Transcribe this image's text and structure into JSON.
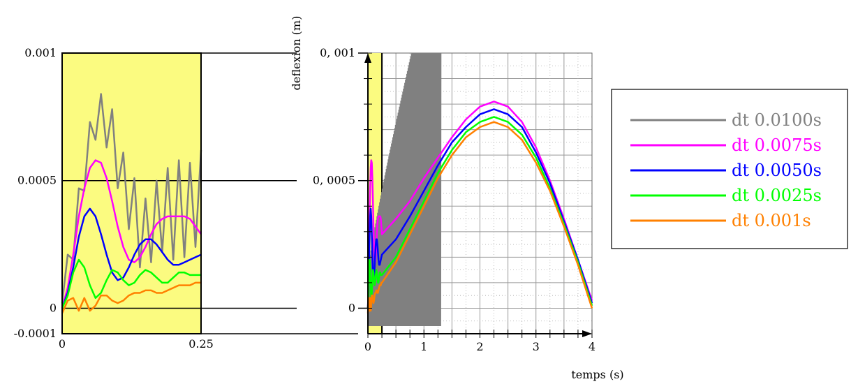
{
  "chart_data": [
    {
      "type": "line",
      "title": "",
      "xlabel": "",
      "ylabel": "",
      "xlim": [
        0,
        0.25
      ],
      "ylim": [
        -0.0001,
        0.001
      ],
      "x_tick_labels": [
        "0",
        "0.25"
      ],
      "y_tick_labels": [
        "0.001",
        "0.0005",
        "0",
        "-0.0001"
      ],
      "y_tick_values": [
        0.001,
        0.0005,
        0,
        -0.0001
      ],
      "background_color": "#fbfb80",
      "series": [
        {
          "name": "dt 0.0100s",
          "color": "#808080",
          "x": [
            0,
            0.01,
            0.02,
            0.03,
            0.04,
            0.05,
            0.06,
            0.07,
            0.08,
            0.09,
            0.1,
            0.11,
            0.12,
            0.13,
            0.14,
            0.15,
            0.16,
            0.17,
            0.18,
            0.19,
            0.2,
            0.21,
            0.22,
            0.23,
            0.24,
            0.25
          ],
          "y": [
            2e-05,
            0.00021,
            0.00019,
            0.00047,
            0.00046,
            0.00073,
            0.00066,
            0.00084,
            0.00063,
            0.00078,
            0.00047,
            0.00061,
            0.00031,
            0.00051,
            0.00016,
            0.00043,
            0.00018,
            0.0005,
            0.00022,
            0.00055,
            0.00019,
            0.00058,
            0.0002,
            0.00057,
            0.00024,
            0.00062
          ]
        },
        {
          "name": "dt 0.0075s",
          "color": "#ff00ff",
          "x": [
            0,
            0.01,
            0.02,
            0.03,
            0.04,
            0.05,
            0.06,
            0.07,
            0.08,
            0.09,
            0.1,
            0.11,
            0.12,
            0.13,
            0.14,
            0.15,
            0.16,
            0.17,
            0.18,
            0.19,
            0.2,
            0.21,
            0.22,
            0.23,
            0.24,
            0.25
          ],
          "y": [
            0,
            8e-05,
            0.00021,
            0.00036,
            0.00047,
            0.00055,
            0.00058,
            0.00057,
            0.00051,
            0.00042,
            0.00032,
            0.00024,
            0.00019,
            0.00018,
            0.0002,
            0.00024,
            0.00029,
            0.00033,
            0.00035,
            0.00036,
            0.00036,
            0.00036,
            0.00036,
            0.00035,
            0.00032,
            0.00029
          ]
        },
        {
          "name": "dt 0.0050s",
          "color": "#0000ff",
          "x": [
            0,
            0.01,
            0.02,
            0.03,
            0.04,
            0.05,
            0.06,
            0.07,
            0.08,
            0.09,
            0.1,
            0.11,
            0.12,
            0.13,
            0.14,
            0.15,
            0.16,
            0.17,
            0.18,
            0.19,
            0.2,
            0.21,
            0.22,
            0.23,
            0.24,
            0.25
          ],
          "y": [
            0,
            6e-05,
            0.00016,
            0.00028,
            0.00036,
            0.00039,
            0.00036,
            0.00029,
            0.00021,
            0.00014,
            0.00011,
            0.00012,
            0.00016,
            0.00021,
            0.00025,
            0.00027,
            0.00027,
            0.00025,
            0.00022,
            0.00019,
            0.00017,
            0.00017,
            0.00018,
            0.00019,
            0.0002,
            0.00021
          ]
        },
        {
          "name": "dt 0.0025s",
          "color": "#00ff00",
          "x": [
            0,
            0.01,
            0.02,
            0.03,
            0.04,
            0.05,
            0.06,
            0.07,
            0.08,
            0.09,
            0.1,
            0.11,
            0.12,
            0.13,
            0.14,
            0.15,
            0.16,
            0.17,
            0.18,
            0.19,
            0.2,
            0.21,
            0.22,
            0.23,
            0.24,
            0.25
          ],
          "y": [
            0,
            5e-05,
            0.00014,
            0.00019,
            0.00016,
            9e-05,
            4e-05,
            6e-05,
            0.00011,
            0.00015,
            0.00014,
            0.00011,
            9e-05,
            0.0001,
            0.00013,
            0.00015,
            0.00014,
            0.00012,
            0.0001,
            0.0001,
            0.00012,
            0.00014,
            0.00014,
            0.00013,
            0.00013,
            0.00013
          ]
        },
        {
          "name": "dt 0.001s",
          "color": "#ff8000",
          "x": [
            0,
            0.01,
            0.02,
            0.03,
            0.04,
            0.05,
            0.06,
            0.07,
            0.08,
            0.09,
            0.1,
            0.11,
            0.12,
            0.13,
            0.14,
            0.15,
            0.16,
            0.17,
            0.18,
            0.19,
            0.2,
            0.21,
            0.22,
            0.23,
            0.24,
            0.25
          ],
          "y": [
            -2e-05,
            3e-05,
            4e-05,
            -1e-05,
            4e-05,
            -1e-05,
            1e-05,
            5e-05,
            5e-05,
            3e-05,
            2e-05,
            3e-05,
            5e-05,
            6e-05,
            6e-05,
            7e-05,
            7e-05,
            6e-05,
            6e-05,
            7e-05,
            8e-05,
            9e-05,
            9e-05,
            9e-05,
            0.0001,
            0.0001
          ]
        }
      ]
    },
    {
      "type": "line",
      "title": "",
      "xlabel": "temps (s)",
      "ylabel": "deflexion (m)",
      "xlim": [
        0,
        4
      ],
      "ylim": [
        -0.0001,
        0.001
      ],
      "x_tick_labels": [
        "0",
        "1",
        "2",
        "3",
        "4"
      ],
      "x_tick_values": [
        0,
        1,
        2,
        3,
        4
      ],
      "y_tick_labels": [
        "0, 001",
        "0, 0005",
        "0"
      ],
      "y_tick_values": [
        0.001,
        0.0005,
        0
      ],
      "grid": true,
      "zoom_window_x": [
        0,
        0.25
      ],
      "series": [
        {
          "name": "dt 0.0100s",
          "color": "#808080",
          "note_values": "diverging oscillation",
          "x": [
            0,
            1.3
          ],
          "y_envelope_max": [
            0.00085,
            0.001
          ],
          "y_envelope_min": [
            2e-05,
            -0.0001
          ]
        },
        {
          "name": "dt 0.0075s",
          "color": "#ff00ff",
          "x": [
            0.25,
            0.5,
            0.75,
            1.0,
            1.25,
            1.5,
            1.75,
            2.0,
            2.25,
            2.5,
            2.75,
            3.0,
            3.25,
            3.5,
            3.75,
            4.0
          ],
          "y": [
            0.00033,
            0.00035,
            0.00042,
            0.00051,
            0.00059,
            0.00067,
            0.00074,
            0.00079,
            0.00081,
            0.00079,
            0.00073,
            0.00063,
            0.0005,
            0.00035,
            0.00019,
            3e-05
          ]
        },
        {
          "name": "dt 0.0050s",
          "color": "#0000ff",
          "x": [
            0.25,
            0.5,
            0.75,
            1.0,
            1.25,
            1.5,
            1.75,
            2.0,
            2.25,
            2.5,
            2.75,
            3.0,
            3.25,
            3.5,
            3.75,
            4.0
          ],
          "y": [
            0.00024,
            0.00027,
            0.00036,
            0.00046,
            0.00056,
            0.00065,
            0.00071,
            0.00076,
            0.00078,
            0.00076,
            0.00071,
            0.00061,
            0.00049,
            0.00034,
            0.00019,
            2e-05
          ]
        },
        {
          "name": "dt 0.0025s",
          "color": "#00ff00",
          "x": [
            0.25,
            0.5,
            0.75,
            1.0,
            1.25,
            1.5,
            1.75,
            2.0,
            2.25,
            2.5,
            2.75,
            3.0,
            3.25,
            3.5,
            3.75,
            4.0
          ],
          "y": [
            0.00013,
            0.0002,
            0.00031,
            0.00042,
            0.00053,
            0.00062,
            0.00069,
            0.00073,
            0.00075,
            0.00073,
            0.00068,
            0.00059,
            0.00047,
            0.00033,
            0.00018,
            1e-05
          ]
        },
        {
          "name": "dt 0.001s",
          "color": "#ff8000",
          "x": [
            0.25,
            0.5,
            0.75,
            1.0,
            1.25,
            1.5,
            1.75,
            2.0,
            2.25,
            2.5,
            2.75,
            3.0,
            3.25,
            3.5,
            3.75,
            4.0
          ],
          "y": [
            0.0001,
            0.00018,
            0.00029,
            0.0004,
            0.00051,
            0.0006,
            0.00067,
            0.00071,
            0.00073,
            0.00071,
            0.00066,
            0.00057,
            0.00046,
            0.00032,
            0.00017,
            0.0
          ]
        }
      ]
    }
  ],
  "legend": {
    "placement": "right",
    "entries": [
      {
        "label": "dt 0.0100s",
        "color": "#808080"
      },
      {
        "label": "dt 0.0075s",
        "color": "#ff00ff"
      },
      {
        "label": "dt 0.0050s",
        "color": "#0000ff"
      },
      {
        "label": "dt 0.0025s",
        "color": "#00ff00"
      },
      {
        "label": "dt 0.001s",
        "color": "#ff8000"
      }
    ]
  }
}
